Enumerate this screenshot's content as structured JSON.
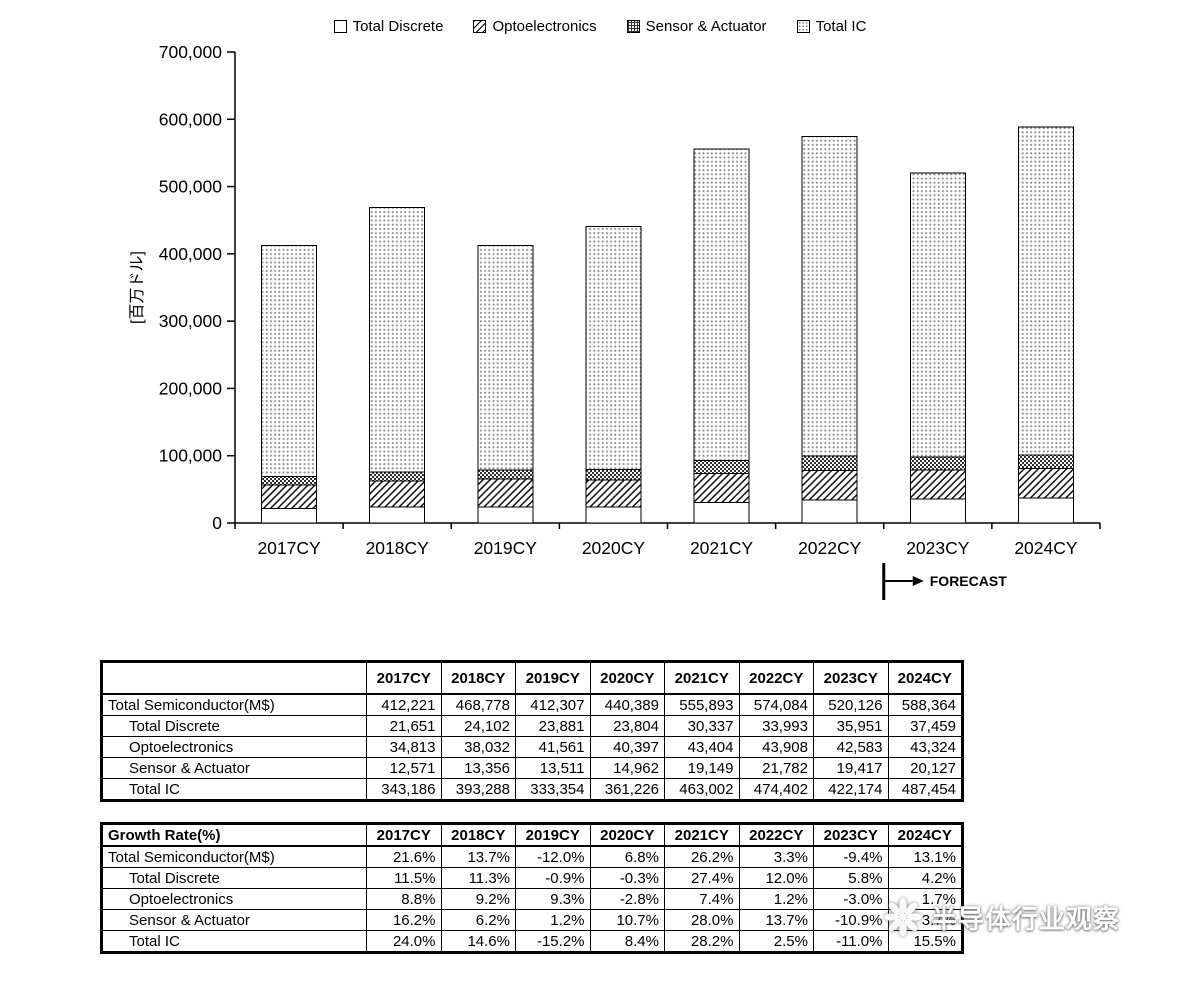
{
  "legend": [
    {
      "label": "Total Discrete",
      "swatch": "discrete-swatch-icon"
    },
    {
      "label": "Optoelectronics",
      "swatch": "opto-swatch-icon"
    },
    {
      "label": "Sensor & Actuator",
      "swatch": "sensor-swatch-icon"
    },
    {
      "label": "Total IC",
      "swatch": "ic-swatch-icon"
    }
  ],
  "chart_data": {
    "type": "bar",
    "stacked": true,
    "title": "",
    "ylabel": "[百万ドル]",
    "ylim": [
      0,
      700000
    ],
    "ytick_interval": 100000,
    "grid": false,
    "legend_position": "top",
    "forecast_label": "FORECAST",
    "forecast_start_category": "2023CY",
    "categories": [
      "2017CY",
      "2018CY",
      "2019CY",
      "2020CY",
      "2021CY",
      "2022CY",
      "2023CY",
      "2024CY"
    ],
    "series": [
      {
        "name": "Total Discrete",
        "pattern": "discrete",
        "values": [
          21651,
          24102,
          23881,
          23804,
          30337,
          33993,
          35951,
          37459
        ]
      },
      {
        "name": "Optoelectronics",
        "pattern": "opto",
        "values": [
          34813,
          38032,
          41561,
          40397,
          43404,
          43908,
          42583,
          43324
        ]
      },
      {
        "name": "Sensor & Actuator",
        "pattern": "sensor",
        "values": [
          12571,
          13356,
          13511,
          14962,
          19149,
          21782,
          19417,
          20127
        ]
      },
      {
        "name": "Total IC",
        "pattern": "ic",
        "values": [
          343186,
          393288,
          333354,
          361226,
          463002,
          474402,
          422174,
          487454
        ]
      }
    ],
    "totals": [
      412221,
      468778,
      412307,
      440389,
      555893,
      574084,
      520126,
      588364
    ]
  },
  "value_table": {
    "header": [
      "",
      "2017CY",
      "2018CY",
      "2019CY",
      "2020CY",
      "2021CY",
      "2022CY",
      "2023CY",
      "2024CY"
    ],
    "rows": [
      {
        "label": "Total Semiconductor(M$)",
        "indent": false,
        "cells": [
          "412,221",
          "468,778",
          "412,307",
          "440,389",
          "555,893",
          "574,084",
          "520,126",
          "588,364"
        ]
      },
      {
        "label": "Total Discrete",
        "indent": true,
        "cells": [
          "21,651",
          "24,102",
          "23,881",
          "23,804",
          "30,337",
          "33,993",
          "35,951",
          "37,459"
        ]
      },
      {
        "label": "Optoelectronics",
        "indent": true,
        "cells": [
          "34,813",
          "38,032",
          "41,561",
          "40,397",
          "43,404",
          "43,908",
          "42,583",
          "43,324"
        ]
      },
      {
        "label": "Sensor & Actuator",
        "indent": true,
        "cells": [
          "12,571",
          "13,356",
          "13,511",
          "14,962",
          "19,149",
          "21,782",
          "19,417",
          "20,127"
        ]
      },
      {
        "label": "Total IC",
        "indent": true,
        "cells": [
          "343,186",
          "393,288",
          "333,354",
          "361,226",
          "463,002",
          "474,402",
          "422,174",
          "487,454"
        ]
      }
    ]
  },
  "growth_table": {
    "header": [
      "Growth Rate(%)",
      "2017CY",
      "2018CY",
      "2019CY",
      "2020CY",
      "2021CY",
      "2022CY",
      "2023CY",
      "2024CY"
    ],
    "rows": [
      {
        "label": "Total Semiconductor(M$)",
        "indent": false,
        "cells": [
          "21.6%",
          "13.7%",
          "-12.0%",
          "6.8%",
          "26.2%",
          "3.3%",
          "-9.4%",
          "13.1%"
        ]
      },
      {
        "label": "Total Discrete",
        "indent": true,
        "cells": [
          "11.5%",
          "11.3%",
          "-0.9%",
          "-0.3%",
          "27.4%",
          "12.0%",
          "5.8%",
          "4.2%"
        ]
      },
      {
        "label": "Optoelectronics",
        "indent": true,
        "cells": [
          "8.8%",
          "9.2%",
          "9.3%",
          "-2.8%",
          "7.4%",
          "1.2%",
          "-3.0%",
          "1.7%"
        ]
      },
      {
        "label": "Sensor & Actuator",
        "indent": true,
        "cells": [
          "16.2%",
          "6.2%",
          "1.2%",
          "10.7%",
          "28.0%",
          "13.7%",
          "-10.9%",
          "3.7%"
        ]
      },
      {
        "label": "Total IC",
        "indent": true,
        "cells": [
          "24.0%",
          "14.6%",
          "-15.2%",
          "8.4%",
          "28.2%",
          "2.5%",
          "-11.0%",
          "15.5%"
        ]
      }
    ]
  },
  "watermark": {
    "text": "半导体行业观察"
  }
}
